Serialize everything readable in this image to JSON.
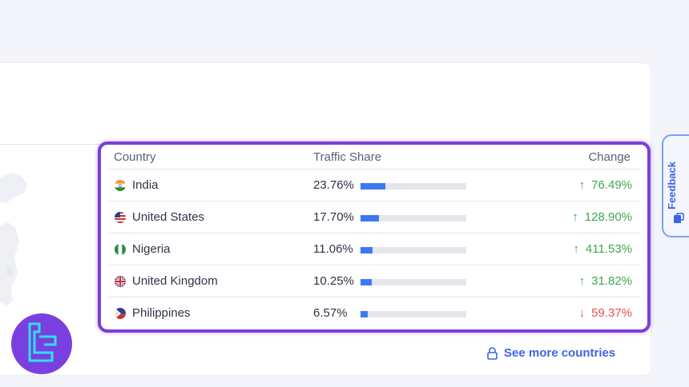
{
  "table": {
    "headers": {
      "country": "Country",
      "traffic_share": "Traffic Share",
      "change": "Change"
    },
    "rows": [
      {
        "country": "India",
        "flag": "india-flag-icon",
        "share": "23.76%",
        "share_value": 23.76,
        "change": "76.49%",
        "direction": "up"
      },
      {
        "country": "United States",
        "flag": "us-flag-icon",
        "share": "17.70%",
        "share_value": 17.7,
        "change": "128.90%",
        "direction": "up"
      },
      {
        "country": "Nigeria",
        "flag": "nigeria-flag-icon",
        "share": "11.06%",
        "share_value": 11.06,
        "change": "411.53%",
        "direction": "up"
      },
      {
        "country": "United Kingdom",
        "flag": "uk-flag-icon",
        "share": "10.25%",
        "share_value": 10.25,
        "change": "31.82%",
        "direction": "up"
      },
      {
        "country": "Philippines",
        "flag": "philippines-flag-icon",
        "share": "6.57%",
        "share_value": 6.57,
        "change": "59.37%",
        "direction": "down"
      }
    ]
  },
  "see_more": {
    "label": "See more countries",
    "icon": "lock-icon"
  },
  "feedback": {
    "label": "Feedback",
    "icon": "feedback-icon"
  },
  "colors": {
    "accent": "#3f63e3",
    "bar": "#3c78ee",
    "up": "#3fa752",
    "down": "#e8504a",
    "highlight": "#7b3fd6"
  }
}
